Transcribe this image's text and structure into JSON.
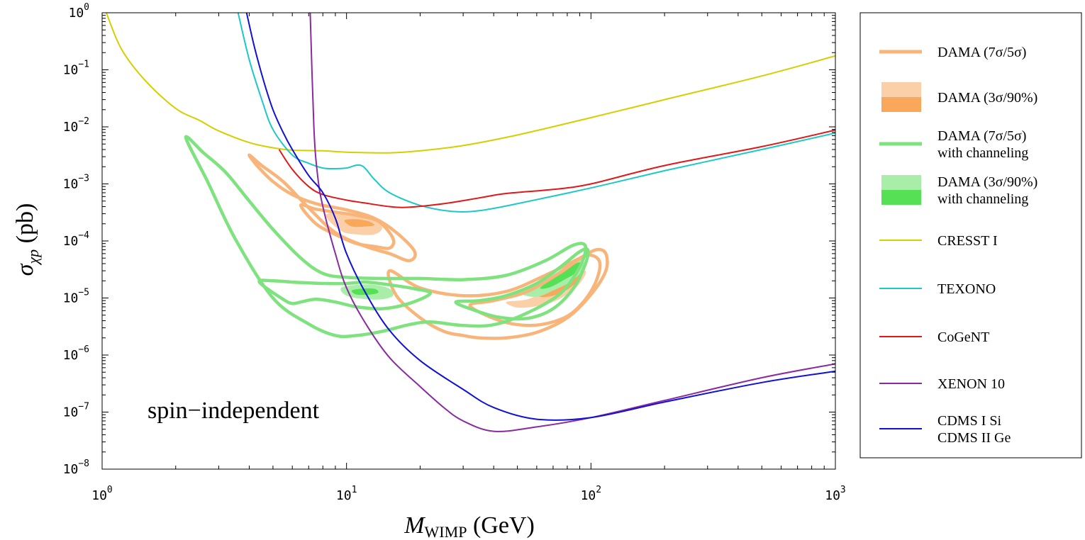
{
  "chart_data": {
    "type": "line",
    "xlabel": {
      "main": "M",
      "sub": "WIMP",
      "unit": " (GeV)"
    },
    "ylabel": {
      "main": "σ",
      "sub": "χp",
      "unit": " (pb)"
    },
    "x_scale": "log",
    "y_scale": "log",
    "xlim": [
      1,
      1000
    ],
    "ylim": [
      1e-08,
      1
    ],
    "x_ticks": [
      {
        "base": "10",
        "exp": "0",
        "value": 1
      },
      {
        "base": "10",
        "exp": "1",
        "value": 10
      },
      {
        "base": "10",
        "exp": "2",
        "value": 100
      },
      {
        "base": "10",
        "exp": "3",
        "value": 1000
      }
    ],
    "y_ticks": [
      {
        "base": "10",
        "exp": "0",
        "value": 1
      },
      {
        "base": "10",
        "exp": "−1",
        "value": 0.1
      },
      {
        "base": "10",
        "exp": "−2",
        "value": 0.01
      },
      {
        "base": "10",
        "exp": "−3",
        "value": 0.001
      },
      {
        "base": "10",
        "exp": "−4",
        "value": 0.0001
      },
      {
        "base": "10",
        "exp": "−5",
        "value": 1e-05
      },
      {
        "base": "10",
        "exp": "−6",
        "value": 1e-06
      },
      {
        "base": "10",
        "exp": "−7",
        "value": 1e-07
      },
      {
        "base": "10",
        "exp": "−8",
        "value": 1e-08
      }
    ],
    "annotation": "spin−independent",
    "grid": false,
    "legend_position": "right",
    "legend": [
      {
        "label": [
          "DAMA (7σ/5σ)"
        ],
        "kind": "line",
        "color": "#f9b47a",
        "width": 5
      },
      {
        "label": [
          "DAMA (3σ/90%)"
        ],
        "kind": "band",
        "color_light": "#fbd0a8",
        "color_dark": "#f9a75a"
      },
      {
        "label": [
          "DAMA (7σ/5σ)",
          "with channeling"
        ],
        "kind": "line",
        "color": "#7ee27e",
        "width": 5
      },
      {
        "label": [
          "DAMA (3σ/90%)",
          "with channeling"
        ],
        "kind": "band",
        "color_light": "#a8eea8",
        "color_dark": "#55e055"
      },
      {
        "label": [
          "CRESST I"
        ],
        "kind": "line",
        "color": "#d4cf00",
        "width": 2
      },
      {
        "label": [
          "TEXONO"
        ],
        "kind": "line",
        "color": "#1ec8c8",
        "width": 2
      },
      {
        "label": [
          "CoGeNT"
        ],
        "kind": "line",
        "color": "#e01818",
        "width": 2
      },
      {
        "label": [
          "XENON 10"
        ],
        "kind": "line",
        "color": "#8a2aa0",
        "width": 2
      },
      {
        "label": [
          "CDMS I Si",
          "CDMS II Ge"
        ],
        "kind": "line",
        "color": "#1010d8",
        "width": 2
      }
    ],
    "series": [
      {
        "name": "CRESST I",
        "color": "#d4cf00",
        "x": [
          1.04,
          1.2,
          1.5,
          2.0,
          2.5,
          3.0,
          4.0,
          5.0,
          6.0,
          8.0,
          10,
          15,
          20,
          30,
          50,
          100,
          200,
          500,
          1000
        ],
        "y": [
          1.0,
          0.23,
          0.065,
          0.021,
          0.013,
          0.0085,
          0.0053,
          0.0043,
          0.0039,
          0.0038,
          0.0036,
          0.0035,
          0.0038,
          0.0047,
          0.0072,
          0.0145,
          0.03,
          0.078,
          0.175
        ]
      },
      {
        "name": "TEXONO",
        "color": "#1ec8c8",
        "x": [
          3.6,
          4.0,
          4.5,
          5.0,
          6.0,
          7.0,
          8.0,
          9.0,
          10.0,
          11.5,
          13,
          15,
          20,
          27,
          35,
          50,
          100,
          200,
          500,
          1000
        ],
        "y": [
          1.0,
          0.15,
          0.03,
          0.009,
          0.0032,
          0.0023,
          0.0019,
          0.00185,
          0.0019,
          0.0021,
          0.0012,
          0.0007,
          0.00042,
          0.00033,
          0.00034,
          0.00045,
          0.00085,
          0.0017,
          0.004,
          0.0078
        ]
      },
      {
        "name": "CoGeNT",
        "color": "#e01818",
        "x": [
          5.3,
          6.0,
          7.0,
          8.0,
          10.0,
          12.0,
          15.0,
          18.0,
          25.0,
          35.0,
          45.0,
          70.0,
          100,
          200,
          500,
          1000
        ],
        "y": [
          0.004,
          0.0018,
          0.0009,
          0.00065,
          0.00052,
          0.00046,
          0.0004,
          0.00039,
          0.00045,
          0.00057,
          0.00068,
          0.0008,
          0.001,
          0.0021,
          0.0045,
          0.0088
        ]
      },
      {
        "name": "XENON 10",
        "color": "#8a2aa0",
        "x": [
          7.1,
          7.35,
          7.6,
          8.0,
          9.0,
          10.0,
          12.0,
          15.0,
          20.0,
          25.0,
          30.0,
          40.0,
          60.0,
          100,
          200,
          500,
          1000
        ],
        "y": [
          1.0,
          0.01,
          0.0015,
          0.0004,
          6e-05,
          1.5e-05,
          3.5e-06,
          9e-07,
          2.8e-07,
          1.2e-07,
          7e-08,
          4.6e-08,
          5.5e-08,
          8e-08,
          1.6e-07,
          4e-07,
          7e-07
        ]
      },
      {
        "name": "CDMS I Si / CDMS II Ge",
        "color": "#1010d8",
        "x": [
          3.9,
          4.2,
          4.6,
          5.0,
          5.5,
          6.0,
          7.0,
          8.0,
          9.0,
          10.0,
          12.0,
          15.0,
          20.0,
          30.0,
          40.0,
          60.0,
          100,
          200,
          500,
          1000
        ],
        "y": [
          1.0,
          0.25,
          0.06,
          0.02,
          0.008,
          0.004,
          0.0014,
          0.0007,
          0.00025,
          6e-05,
          1.2e-05,
          2.7e-06,
          8e-07,
          2.5e-07,
          1.2e-07,
          7.5e-08,
          8e-08,
          1.5e-07,
          3.3e-07,
          5.2e-07
        ]
      }
    ],
    "regions": [
      {
        "name": "DAMA 7σ (low mass)",
        "kind": "outline",
        "color": "#f9b47a",
        "x": [
          4.0,
          4.3,
          5.0,
          6.0,
          7.5,
          10.0,
          13.0,
          16.0,
          19.0,
          18.0,
          15.0,
          12.0,
          9.0,
          7.0,
          5.5,
          4.5,
          4.0
        ],
        "y": [
          0.0032,
          0.0021,
          0.0011,
          0.00065,
          0.00045,
          0.00035,
          0.00025,
          0.00014,
          6.5e-05,
          4.5e-05,
          6e-05,
          8e-05,
          0.00014,
          0.00038,
          0.0011,
          0.0021,
          0.0032
        ]
      },
      {
        "name": "DAMA 5σ (low mass)",
        "kind": "outline",
        "color": "#f9b47a",
        "x": [
          6.5,
          7.5,
          9.0,
          11.0,
          13.5,
          15.5,
          15.0,
          13.0,
          11.0,
          9.0,
          7.5,
          6.5
        ],
        "y": [
          0.00042,
          0.00036,
          0.00032,
          0.00028,
          0.00022,
          0.00011,
          7.5e-05,
          8e-05,
          9e-05,
          0.00013,
          0.0002,
          0.00042
        ]
      },
      {
        "name": "DAMA 90% (low mass)",
        "kind": "fill",
        "color": "#fbd0a8",
        "x": [
          8.2,
          9.5,
          11.5,
          13.0,
          14.0,
          13.0,
          11.0,
          9.5,
          8.2
        ],
        "y": [
          0.00028,
          0.00031,
          0.00029,
          0.00024,
          0.00017,
          0.00013,
          0.00013,
          0.00015,
          0.00028
        ]
      },
      {
        "name": "DAMA 3σ (low mass)",
        "kind": "fill",
        "color": "#f9a75a",
        "x": [
          9.8,
          11.0,
          12.3,
          13.0,
          12.0,
          10.5,
          9.8
        ],
        "y": [
          0.00023,
          0.00024,
          0.00022,
          0.00019,
          0.00018,
          0.00018,
          0.00023
        ]
      },
      {
        "name": "DAMA 7σ (high mass)",
        "kind": "outline",
        "color": "#f9b47a",
        "x": [
          15.0,
          20.0,
          30.0,
          45.0,
          65.0,
          90.0,
          105,
          115,
          115,
          100,
          80,
          60,
          45,
          35,
          30,
          25,
          20,
          16,
          15
        ],
        "y": [
          3e-05,
          1.5e-05,
          1.1e-05,
          1.3e-05,
          2.5e-05,
          5e-05,
          7e-05,
          6e-05,
          3e-05,
          1.15e-05,
          4.5e-06,
          2.5e-06,
          2e-06,
          2e-06,
          2.2e-06,
          2.6e-06,
          4.5e-06,
          1.1e-05,
          3e-05
        ]
      },
      {
        "name": "DAMA 5σ (high mass)",
        "kind": "outline",
        "color": "#f9b47a",
        "x": [
          32,
          40,
          55,
          75,
          95,
          108,
          106,
          95,
          80,
          62,
          48,
          38,
          32
        ],
        "y": [
          7.5e-06,
          9e-06,
          1.3e-05,
          2.8e-05,
          5.5e-05,
          4.5e-05,
          2.2e-05,
          9.5e-06,
          4.8e-06,
          3.4e-06,
          3.5e-06,
          4.8e-06,
          7.5e-06
        ]
      },
      {
        "name": "DAMA 90% (high mass)",
        "kind": "fill",
        "color": "#fbd0a8",
        "x": [
          45,
          55,
          70,
          85,
          95,
          93,
          85,
          72,
          60,
          50,
          45
        ],
        "y": [
          8.5e-06,
          9.5e-06,
          1.5e-05,
          2.6e-05,
          3e-05,
          2.2e-05,
          1.4e-05,
          9e-06,
          7.2e-06,
          6.8e-06,
          8.5e-06
        ]
      },
      {
        "name": "DAMA 3σ (high mass)",
        "kind": "fill",
        "color": "#f9a75a",
        "x": [
          60,
          70,
          80,
          90,
          88,
          80,
          70,
          62,
          60
        ],
        "y": [
          1.3e-05,
          1.7e-05,
          2.5e-05,
          2.8e-05,
          2e-05,
          1.4e-05,
          1.1e-05,
          1.05e-05,
          1.3e-05
        ]
      },
      {
        "name": "DAMA channeling 7σ",
        "kind": "outline",
        "color": "#7ee27e",
        "x": [
          2.2,
          2.6,
          3.2,
          4.0,
          5.0,
          6.5,
          8.0,
          10.0,
          14.0,
          20.0,
          30.0,
          45.0,
          65.0,
          85.0,
          95.0,
          90.0,
          75.0,
          55.0,
          40.0,
          30.0,
          22.0,
          18.0,
          14.0,
          11.0,
          9.0,
          7.0,
          5.0,
          3.5,
          2.7,
          2.2
        ],
        "y": [
          0.0065,
          0.0035,
          0.0016,
          0.0005,
          0.00016,
          5e-05,
          2.7e-05,
          2.3e-05,
          2.2e-05,
          2.2e-05,
          2.1e-05,
          2.5e-05,
          4.5e-05,
          8.5e-05,
          8e-05,
          3.5e-05,
          1.2e-05,
          5.5e-06,
          3.4e-06,
          3.3e-06,
          3.8e-06,
          3.4e-06,
          2.6e-06,
          2.2e-06,
          2.2e-06,
          3.5e-06,
          1e-05,
          0.00011,
          0.0011,
          0.0065
        ]
      },
      {
        "name": "DAMA channeling 5σ (low mass)",
        "kind": "outline",
        "color": "#7ee27e",
        "x": [
          4.4,
          5.0,
          6.0,
          8.0,
          10.0,
          12.0,
          15.0,
          19.0,
          22.0,
          18.0,
          14.0,
          11.0,
          9.0,
          7.5,
          6.5,
          6.0,
          5.5,
          4.4
        ],
        "y": [
          1.9e-05,
          2e-05,
          1.9e-05,
          1.8e-05,
          1.8e-05,
          1.9e-05,
          1.7e-05,
          1.45e-05,
          1.2e-05,
          8e-06,
          6.5e-06,
          7e-06,
          8.5e-06,
          9.5e-06,
          8.5e-06,
          8e-06,
          9.5e-06,
          1.9e-05
        ]
      },
      {
        "name": "DAMA channeling 90% (low mass)",
        "kind": "fill",
        "color": "#a8eea8",
        "x": [
          9.5,
          11.0,
          13.0,
          15.0,
          15.5,
          14.0,
          12.0,
          10.0,
          9.5
        ],
        "y": [
          1.5e-05,
          1.7e-05,
          1.7e-05,
          1.45e-05,
          1.1e-05,
          9.5e-06,
          9.5e-06,
          1.1e-05,
          1.5e-05
        ]
      },
      {
        "name": "DAMA channeling 3σ (low mass)",
        "kind": "fill",
        "color": "#55e055",
        "x": [
          10.5,
          11.5,
          13.0,
          13.5,
          12.5,
          11.0,
          10.5
        ],
        "y": [
          1.35e-05,
          1.45e-05,
          1.45e-05,
          1.25e-05,
          1.15e-05,
          1.15e-05,
          1.35e-05
        ]
      },
      {
        "name": "DAMA channeling 5σ (high mass)",
        "kind": "outline",
        "color": "#7ee27e",
        "x": [
          28,
          35,
          45,
          60,
          75,
          90,
          97,
          95,
          85,
          70,
          55,
          42,
          33,
          28
        ],
        "y": [
          8.5e-06,
          9e-06,
          1.1e-05,
          1.8e-05,
          3.5e-05,
          6.5e-05,
          7e-05,
          4e-05,
          1.5e-05,
          6.5e-06,
          4.4e-06,
          4.6e-06,
          6.2e-06,
          8.5e-06
        ]
      },
      {
        "name": "DAMA channeling 90% (high mass)",
        "kind": "fill",
        "color": "#a8eea8",
        "x": [
          52,
          60,
          72,
          85,
          93,
          92,
          82,
          70,
          60,
          52
        ],
        "y": [
          1.2e-05,
          1.7e-05,
          2.8e-05,
          4.2e-05,
          5e-05,
          3e-05,
          1.9e-05,
          1.35e-05,
          1.05e-05,
          1.2e-05
        ]
      },
      {
        "name": "DAMA channeling 3σ (high mass)",
        "kind": "fill",
        "color": "#55e055",
        "x": [
          62,
          72,
          82,
          90,
          88,
          78,
          68,
          62
        ],
        "y": [
          1.5e-05,
          2.4e-05,
          3.5e-05,
          4.2e-05,
          2.9e-05,
          2.1e-05,
          1.55e-05,
          1.5e-05
        ]
      }
    ]
  }
}
